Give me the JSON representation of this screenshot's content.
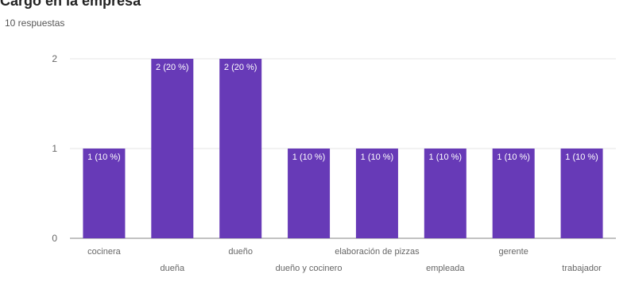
{
  "header": {
    "question": "Cargo en la empresa",
    "responses": "10 respuestas"
  },
  "colors": {
    "bar": "#673ab7",
    "label_text": "#ffffff",
    "grid": "#e6e6e6",
    "axis": "#9e9e9e",
    "tick_text": "#666666"
  },
  "chart_data": {
    "type": "bar",
    "title": "",
    "xlabel": "",
    "ylabel": "",
    "categories": [
      "cocinera",
      "dueña",
      "dueño",
      "dueño y cocinero",
      "elaboración de pizzas",
      "empleada",
      "gerente",
      "trabajador"
    ],
    "values": [
      1,
      2,
      2,
      1,
      1,
      1,
      1,
      1
    ],
    "data_labels": [
      "1 (10 %)",
      "2 (20 %)",
      "2 (20 %)",
      "1 (10 %)",
      "1 (10 %)",
      "1 (10 %)",
      "1 (10 %)",
      "1 (10 %)"
    ],
    "ylim": [
      0,
      2
    ],
    "yticks": [
      0,
      1,
      2
    ],
    "grid": true,
    "legend": "none"
  }
}
